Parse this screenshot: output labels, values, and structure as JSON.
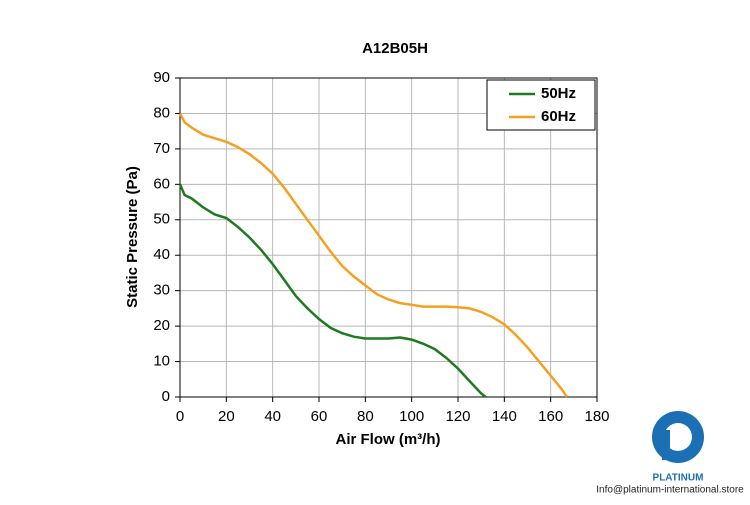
{
  "chart_data": {
    "type": "line",
    "title": "A12B05H",
    "x_label": "Air Flow (m³/h)",
    "y_label": "Static Pressure (Pa)",
    "xlim": [
      0,
      180
    ],
    "ylim": [
      0,
      90
    ],
    "xticks": [
      0,
      20,
      40,
      60,
      80,
      100,
      120,
      140,
      160,
      180
    ],
    "yticks": [
      0,
      10,
      20,
      30,
      40,
      50,
      60,
      70,
      80,
      90
    ],
    "grid": true,
    "legend": "top-right",
    "series": [
      {
        "name": "50Hz",
        "color": "#1e7a1e",
        "x": [
          0,
          2,
          5,
          10,
          15,
          20,
          25,
          30,
          35,
          40,
          45,
          50,
          55,
          60,
          65,
          70,
          75,
          80,
          90,
          95,
          100,
          105,
          110,
          115,
          120,
          125,
          130,
          132
        ],
        "values": [
          60,
          57,
          56,
          53.5,
          51.5,
          50.5,
          48,
          45,
          41.5,
          37.5,
          33,
          28.5,
          25,
          22,
          19.5,
          18,
          17,
          16.5,
          16.5,
          16.8,
          16.2,
          15,
          13.5,
          11,
          8,
          4.5,
          1,
          0
        ]
      },
      {
        "name": "60Hz",
        "color": "#f5a020",
        "x": [
          0,
          2,
          5,
          10,
          15,
          20,
          25,
          30,
          35,
          40,
          45,
          50,
          55,
          60,
          65,
          70,
          75,
          80,
          85,
          90,
          95,
          100,
          105,
          110,
          115,
          120,
          125,
          130,
          135,
          140,
          145,
          150,
          155,
          160,
          165,
          167
        ],
        "values": [
          80,
          77.5,
          76,
          74,
          73,
          72,
          70.5,
          68.5,
          66,
          63,
          59,
          54.5,
          50,
          45.5,
          41,
          37,
          34,
          31.5,
          29,
          27.5,
          26.5,
          26,
          25.5,
          25.5,
          25.5,
          25.3,
          25,
          24,
          22.5,
          20.5,
          17.5,
          14,
          10,
          6,
          2,
          0
        ]
      }
    ]
  },
  "watermark": {
    "brand": "PLATINUM",
    "email": "Info@platinum-international.store"
  }
}
